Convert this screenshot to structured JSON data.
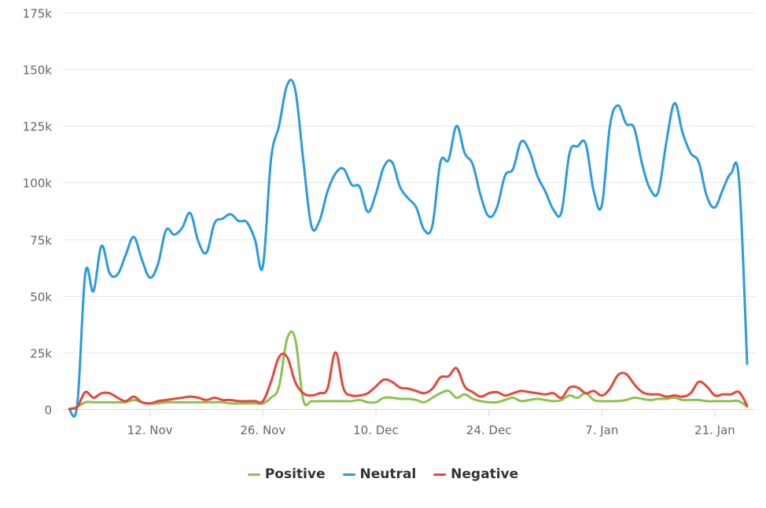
{
  "chart_data": {
    "type": "line",
    "title": "",
    "xlabel": "",
    "ylabel": "",
    "x_start_date": "2 Nov",
    "x_interval": "1 day",
    "x_tick_labels": [
      {
        "label": "12. Nov",
        "index": 10
      },
      {
        "label": "26. Nov",
        "index": 24
      },
      {
        "label": "10. Dec",
        "index": 38
      },
      {
        "label": "24. Dec",
        "index": 52
      },
      {
        "label": "7. Jan",
        "index": 66
      },
      {
        "label": "21. Jan",
        "index": 80
      }
    ],
    "y_tick_values": [
      0,
      25000,
      50000,
      75000,
      100000,
      125000,
      150000,
      175000
    ],
    "y_tick_labels": [
      "0",
      "25k",
      "50k",
      "75k",
      "100k",
      "125k",
      "150k",
      "175k"
    ],
    "ylim": [
      0,
      175000
    ],
    "grid": true,
    "legend_position": "bottom",
    "series": [
      {
        "name": "Positive",
        "color": "#8bc34a",
        "values": [
          0,
          1000,
          3000,
          3000,
          3000,
          3000,
          3000,
          3000,
          4000,
          3000,
          2500,
          2500,
          3000,
          3000,
          3000,
          3000,
          3000,
          3000,
          3000,
          3000,
          2500,
          2500,
          2500,
          2500,
          2500,
          5000,
          10000,
          31000,
          31000,
          4000,
          3500,
          3500,
          3500,
          3500,
          3500,
          3500,
          4000,
          3000,
          3000,
          5000,
          5000,
          4500,
          4500,
          4000,
          3000,
          5000,
          7000,
          8000,
          5000,
          6500,
          4500,
          3500,
          3000,
          3000,
          4000,
          5000,
          3500,
          4000,
          4500,
          4000,
          3500,
          4000,
          6000,
          5000,
          7000,
          4000,
          3500,
          3500,
          3500,
          4000,
          5000,
          4500,
          4000,
          4500,
          4500,
          5000,
          4000,
          4000,
          4000,
          3500,
          3500,
          3500,
          3500,
          3500,
          1000
        ]
      },
      {
        "name": "Neutral",
        "color": "#2b9be0",
        "values": [
          0,
          2000,
          60000,
          52000,
          72000,
          60000,
          59500,
          68000,
          76000,
          66000,
          58000,
          64000,
          79000,
          77000,
          80000,
          86500,
          74000,
          69000,
          82000,
          84000,
          86000,
          83000,
          82500,
          75000,
          63000,
          110000,
          125000,
          143000,
          141000,
          110000,
          81000,
          83000,
          96000,
          104000,
          106000,
          99000,
          98000,
          87000,
          95000,
          107000,
          109000,
          98000,
          93000,
          89000,
          79000,
          81000,
          109000,
          110000,
          125000,
          113000,
          108000,
          94000,
          85000,
          89000,
          103000,
          106000,
          118000,
          114000,
          103000,
          96000,
          88000,
          87000,
          113000,
          116000,
          117000,
          96000,
          90000,
          125000,
          134000,
          126000,
          124000,
          108000,
          97000,
          96000,
          118000,
          135000,
          122000,
          113000,
          109000,
          94000,
          89000,
          97000,
          104000,
          101000,
          20000
        ]
      },
      {
        "name": "Negative",
        "color": "#e8453c",
        "values": [
          0,
          1000,
          7500,
          5000,
          7000,
          7000,
          5000,
          3500,
          5500,
          3000,
          2500,
          3500,
          4000,
          4500,
          5000,
          5500,
          5000,
          4000,
          5000,
          4000,
          4000,
          3500,
          3500,
          3500,
          3500,
          12000,
          23000,
          23000,
          12000,
          7000,
          6000,
          7000,
          9000,
          25000,
          9000,
          6000,
          6000,
          7000,
          10000,
          13000,
          12000,
          9500,
          9000,
          8000,
          7000,
          9000,
          14000,
          14500,
          18000,
          10000,
          7500,
          5500,
          7000,
          7500,
          6000,
          7000,
          8000,
          7500,
          7000,
          6500,
          7000,
          5000,
          9500,
          9500,
          7000,
          8000,
          6000,
          9000,
          15000,
          15500,
          11000,
          7500,
          6500,
          6500,
          5500,
          6000,
          5500,
          7000,
          12000,
          10000,
          6000,
          6500,
          6500,
          7500,
          1500
        ]
      }
    ]
  }
}
